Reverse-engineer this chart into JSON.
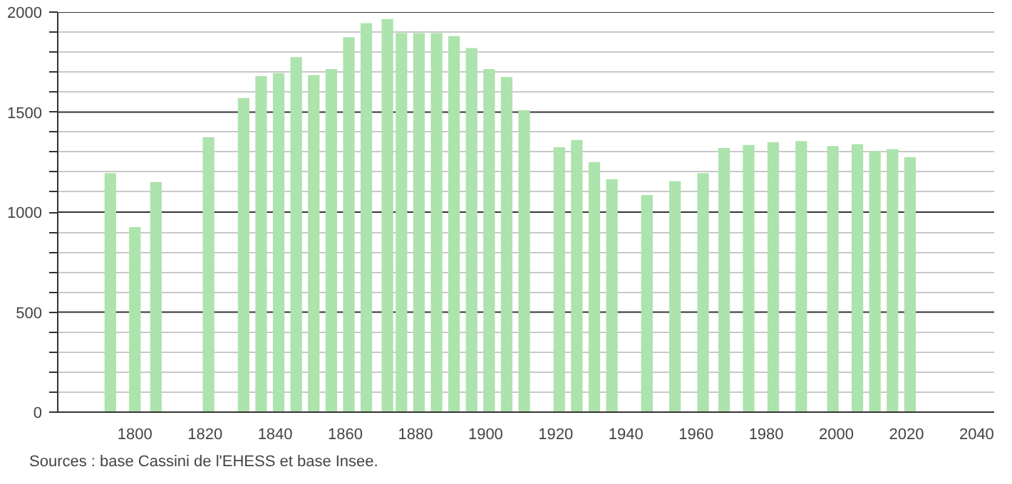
{
  "chart_data": {
    "type": "bar",
    "color": "#ade3ad",
    "x": [
      1793,
      1800,
      1806,
      1821,
      1831,
      1836,
      1841,
      1846,
      1851,
      1856,
      1861,
      1866,
      1872,
      1876,
      1881,
      1886,
      1891,
      1896,
      1901,
      1906,
      1911,
      1921,
      1926,
      1931,
      1936,
      1946,
      1954,
      1962,
      1968,
      1975,
      1982,
      1990,
      1999,
      2006,
      2011,
      2016,
      2021
    ],
    "values": [
      1195,
      925,
      1150,
      1375,
      1570,
      1680,
      1695,
      1775,
      1685,
      1715,
      1875,
      1945,
      1965,
      1895,
      1895,
      1895,
      1880,
      1820,
      1715,
      1675,
      1510,
      1325,
      1360,
      1250,
      1165,
      1085,
      1155,
      1195,
      1320,
      1335,
      1350,
      1355,
      1330,
      1340,
      1305,
      1315,
      1275
    ],
    "xlim": [
      1778,
      2045
    ],
    "xticks": [
      1800,
      1820,
      1840,
      1860,
      1880,
      1900,
      1920,
      1940,
      1960,
      1980,
      2000,
      2020,
      2040
    ],
    "ylim": [
      0,
      2000
    ],
    "yticks": [
      0,
      {
        "value": 100,
        "label": null
      },
      {
        "value": 200,
        "label": null
      },
      {
        "value": 300,
        "label": null
      },
      {
        "value": 400,
        "label": null
      },
      500,
      {
        "value": 600,
        "label": null
      },
      {
        "value": 700,
        "label": null
      },
      {
        "value": 800,
        "label": null
      },
      {
        "value": 900,
        "label": null
      },
      1000,
      {
        "value": 1100,
        "label": null
      },
      {
        "value": 1200,
        "label": null
      },
      {
        "value": 1300,
        "label": null
      },
      {
        "value": 1400,
        "label": null
      },
      1500,
      {
        "value": 1600,
        "label": null
      },
      {
        "value": 1700,
        "label": null
      },
      {
        "value": 1800,
        "label": null
      },
      {
        "value": 1900,
        "label": null
      },
      2000
    ],
    "grid": "y",
    "annotations": [
      "Sources : base Cassini de l'EHESS et base Insee."
    ]
  }
}
